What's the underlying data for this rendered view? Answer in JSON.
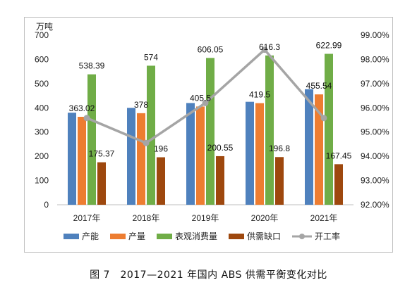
{
  "chart_data": {
    "type": "bar",
    "y_unit": "万吨",
    "categories": [
      "2017年",
      "2018年",
      "2019年",
      "2020年",
      "2021年"
    ],
    "series": [
      {
        "name": "产能",
        "type": "bar",
        "color": "#4f81bd",
        "values": [
          380,
          400,
          420,
          425,
          477
        ]
      },
      {
        "name": "产量",
        "type": "bar",
        "color": "#ed7d31",
        "values": [
          363.02,
          378,
          405.5,
          419.5,
          455.54
        ],
        "labels": [
          "363.02",
          "378",
          "405.5",
          "419.5",
          "455.54"
        ]
      },
      {
        "name": "表观消费量",
        "type": "bar",
        "color": "#70ad47",
        "values": [
          538.39,
          574,
          606.05,
          616.3,
          622.99
        ],
        "labels": [
          "538.39",
          "574",
          "606.05",
          "616.3",
          "622.99"
        ]
      },
      {
        "name": "供需缺口",
        "type": "bar",
        "color": "#9e480e",
        "values": [
          175.37,
          196,
          200.55,
          196.8,
          167.45
        ],
        "labels": [
          "175.37",
          "196",
          "200.55",
          "196.8",
          "167.45"
        ]
      },
      {
        "name": "开工率",
        "type": "line",
        "axis": "right",
        "color": "#a5a5a5",
        "values": [
          95.58,
          94.55,
          96.2,
          98.4,
          95.58
        ]
      }
    ],
    "ylim": [
      0,
      700
    ],
    "yticks": [
      "0",
      "100",
      "200",
      "300",
      "400",
      "500",
      "600",
      "700"
    ],
    "y2lim": [
      92,
      99
    ],
    "y2ticks": [
      "92.00%",
      "93.00%",
      "94.00%",
      "95.00%",
      "96.00%",
      "97.00%",
      "98.00%",
      "99.00%"
    ],
    "legend_position": "bottom",
    "grid": false
  },
  "caption": "图 7　2017—2021 年国内 ABS 供需平衡变化对比"
}
